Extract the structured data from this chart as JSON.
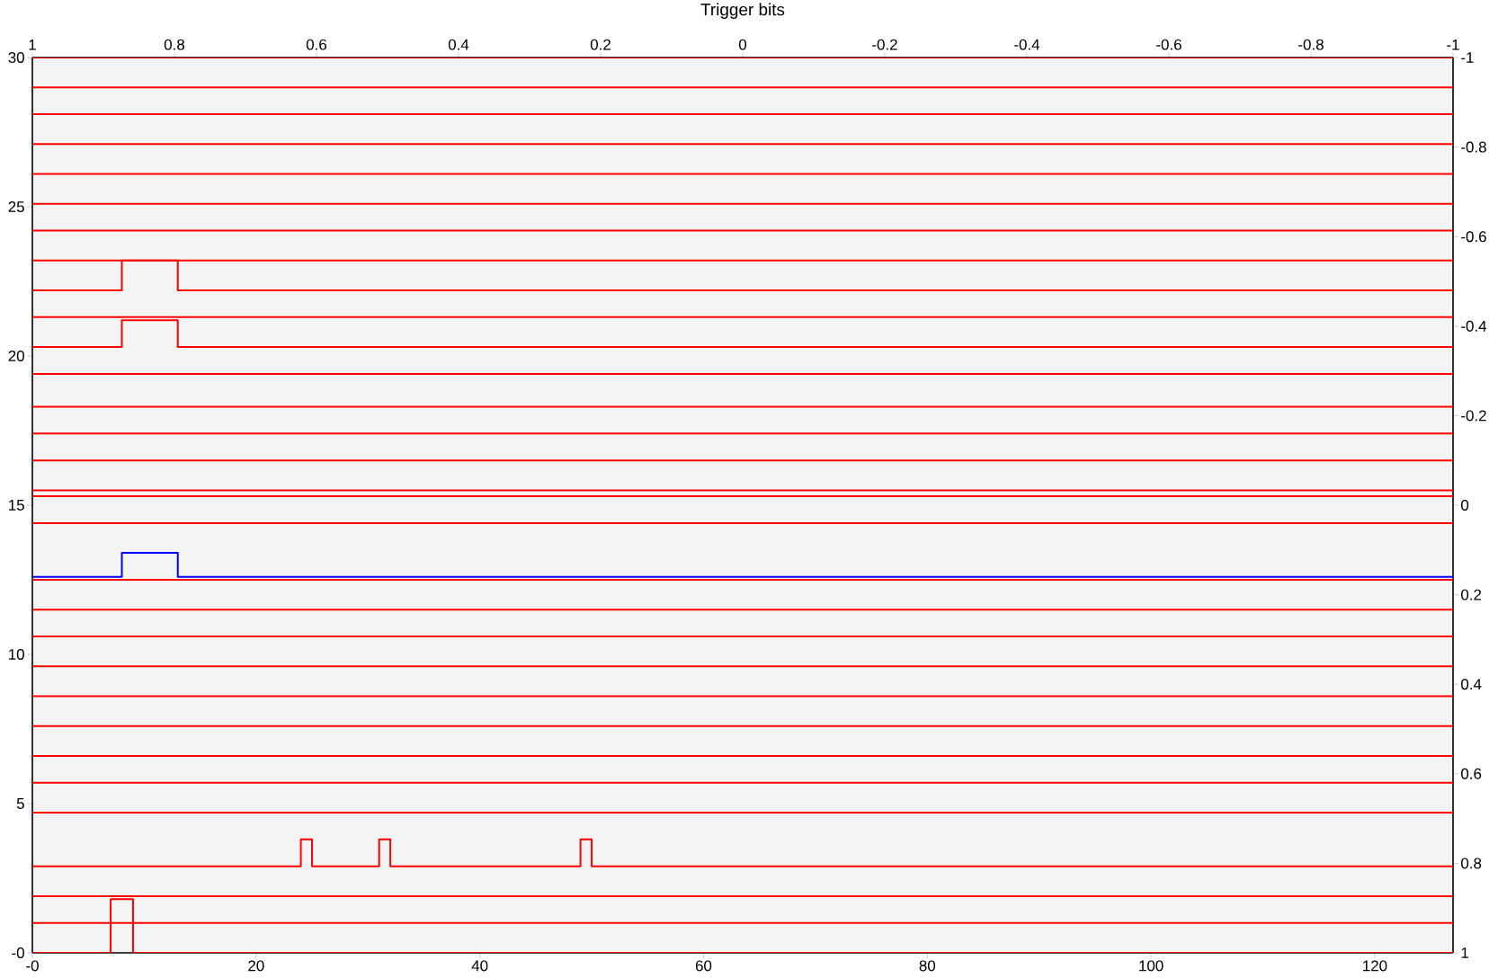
{
  "chart_data": {
    "type": "step",
    "title": "Trigger bits",
    "xlim": [
      0,
      127
    ],
    "xticks": [
      {
        "value": 0,
        "label": "-0"
      },
      20,
      40,
      60,
      80,
      100,
      120
    ],
    "ylim": [
      0,
      30
    ],
    "yticks": [
      {
        "value": 0,
        "label": "-0"
      },
      5,
      10,
      15,
      20,
      25,
      30
    ],
    "x2lim": [
      1,
      -1
    ],
    "x2ticks": [
      1,
      0.8,
      0.6,
      0.4,
      0.2,
      0,
      -0.2,
      -0.4,
      -0.6,
      -0.8,
      -1
    ],
    "y2lim": [
      1,
      -1
    ],
    "y2ticks": [
      1,
      0.8,
      0.6,
      0.4,
      0.2,
      0,
      -0.2,
      -0.4,
      -0.6,
      -0.8,
      -1
    ],
    "series": [
      {
        "color": "#ff0000",
        "x": [
          0,
          127
        ],
        "values": [
          30.0,
          30.0
        ]
      },
      {
        "color": "#ff0000",
        "x": [
          0,
          127
        ],
        "values": [
          29.0,
          29.0
        ]
      },
      {
        "color": "#ff0000",
        "x": [
          0,
          127
        ],
        "values": [
          28.1,
          28.1
        ]
      },
      {
        "color": "#ff0000",
        "x": [
          0,
          127
        ],
        "values": [
          27.1,
          27.1
        ]
      },
      {
        "color": "#ff0000",
        "x": [
          0,
          127
        ],
        "values": [
          26.1,
          26.1
        ]
      },
      {
        "color": "#ff0000",
        "x": [
          0,
          127
        ],
        "values": [
          25.1,
          25.1
        ]
      },
      {
        "color": "#ff0000",
        "x": [
          0,
          127
        ],
        "values": [
          24.2,
          24.2
        ]
      },
      {
        "color": "#ff0000",
        "x": [
          0,
          127
        ],
        "values": [
          23.2,
          23.2
        ]
      },
      {
        "color": "#ff0000",
        "x": [
          0,
          8,
          13,
          127
        ],
        "values": [
          22.2,
          23.2,
          22.2,
          22.2
        ]
      },
      {
        "color": "#ff0000",
        "x": [
          0,
          127
        ],
        "values": [
          21.3,
          21.3
        ]
      },
      {
        "color": "#ff0000",
        "x": [
          0,
          8,
          13,
          127
        ],
        "values": [
          20.3,
          21.2,
          20.3,
          20.3
        ]
      },
      {
        "color": "#ff0000",
        "x": [
          0,
          127
        ],
        "values": [
          19.4,
          19.4
        ]
      },
      {
        "color": "#ff0000",
        "x": [
          0,
          127
        ],
        "values": [
          18.3,
          18.3
        ]
      },
      {
        "color": "#ff0000",
        "x": [
          0,
          127
        ],
        "values": [
          17.4,
          17.4
        ]
      },
      {
        "color": "#ff0000",
        "x": [
          0,
          127
        ],
        "values": [
          16.5,
          16.5
        ]
      },
      {
        "color": "#ff0000",
        "x": [
          0,
          127
        ],
        "values": [
          15.5,
          15.5
        ]
      },
      {
        "color": "#ff0000",
        "x": [
          0,
          127
        ],
        "values": [
          15.3,
          15.3
        ]
      },
      {
        "color": "#ff0000",
        "x": [
          0,
          127
        ],
        "values": [
          14.4,
          14.4
        ]
      },
      {
        "color": "#0000ff",
        "x": [
          0,
          8,
          13,
          127
        ],
        "values": [
          12.6,
          13.4,
          12.6,
          12.6
        ]
      },
      {
        "color": "#ff0000",
        "x": [
          0,
          127
        ],
        "values": [
          12.5,
          12.5
        ]
      },
      {
        "color": "#ff0000",
        "x": [
          0,
          127
        ],
        "values": [
          11.5,
          11.5
        ]
      },
      {
        "color": "#ff0000",
        "x": [
          0,
          127
        ],
        "values": [
          10.6,
          10.6
        ]
      },
      {
        "color": "#ff0000",
        "x": [
          0,
          127
        ],
        "values": [
          9.6,
          9.6
        ]
      },
      {
        "color": "#ff0000",
        "x": [
          0,
          127
        ],
        "values": [
          8.6,
          8.6
        ]
      },
      {
        "color": "#ff0000",
        "x": [
          0,
          127
        ],
        "values": [
          7.6,
          7.6
        ]
      },
      {
        "color": "#ff0000",
        "x": [
          0,
          127
        ],
        "values": [
          6.6,
          6.6
        ]
      },
      {
        "color": "#ff0000",
        "x": [
          0,
          127
        ],
        "values": [
          5.7,
          5.7
        ]
      },
      {
        "color": "#ff0000",
        "x": [
          0,
          127
        ],
        "values": [
          4.7,
          4.7
        ]
      },
      {
        "color": "#ff0000",
        "x": [
          0,
          24,
          25,
          31,
          32,
          49,
          50,
          127
        ],
        "values": [
          2.9,
          3.8,
          2.9,
          3.8,
          2.9,
          3.8,
          2.9,
          2.9
        ]
      },
      {
        "color": "#ff0000",
        "x": [
          0,
          127
        ],
        "values": [
          1.9,
          1.9
        ]
      },
      {
        "color": "#ff0000",
        "x": [
          0,
          127
        ],
        "values": [
          1.0,
          1.0
        ]
      },
      {
        "color": "#ff0000",
        "x": [
          0,
          7,
          9,
          127
        ],
        "values": [
          0,
          1.8,
          0,
          0
        ]
      }
    ]
  }
}
